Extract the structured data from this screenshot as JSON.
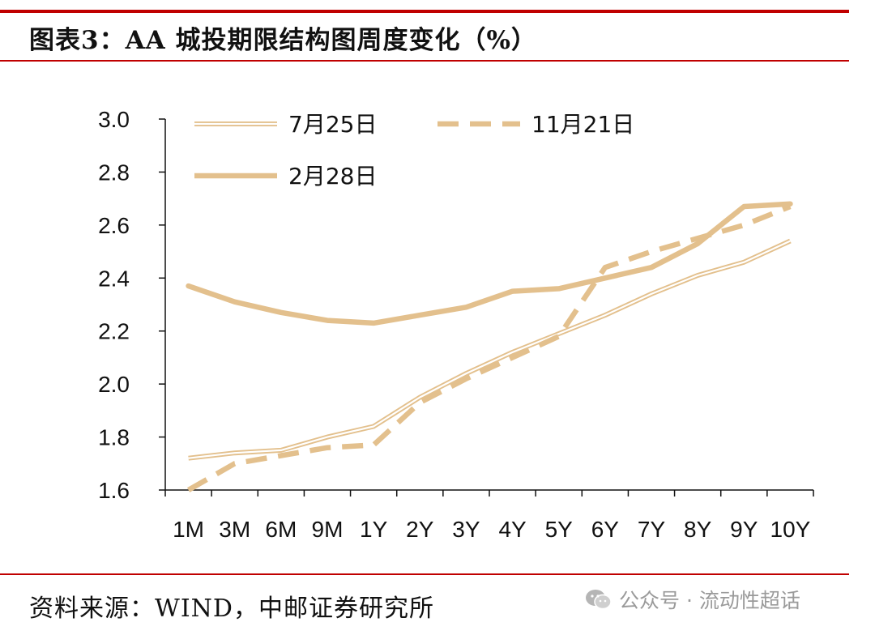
{
  "title": "图表3：AA 城投期限结构图周度变化（%）",
  "source": "资料来源：WIND，中邮证券研究所",
  "watermark": {
    "icon": "wechat-icon",
    "text": "公众号 · 流动性超话"
  },
  "colors": {
    "rule": "#c00000",
    "series": "#e3c08d",
    "axis": "#111111"
  },
  "chart_data": {
    "type": "line",
    "title": "图表3：AA 城投期限结构图周度变化（%）",
    "xlabel": "",
    "ylabel": "",
    "ylim": [
      1.6,
      3.0
    ],
    "yticks": [
      1.6,
      1.8,
      2.0,
      2.2,
      2.4,
      2.6,
      2.8,
      3.0
    ],
    "ytick_labels": [
      "1.6",
      "1.8",
      "2.0",
      "2.2",
      "2.4",
      "2.6",
      "2.8",
      "3.0"
    ],
    "categories": [
      "1M",
      "3M",
      "6M",
      "9M",
      "1Y",
      "2Y",
      "3Y",
      "4Y",
      "5Y",
      "6Y",
      "7Y",
      "8Y",
      "9Y",
      "10Y"
    ],
    "legend_position": "top-left",
    "grid": false,
    "series": [
      {
        "name": "7月25日",
        "style": "double",
        "values": [
          1.72,
          1.74,
          1.75,
          1.8,
          1.84,
          1.95,
          2.04,
          2.12,
          2.19,
          2.26,
          2.34,
          2.41,
          2.46,
          2.54
        ]
      },
      {
        "name": "11月21日",
        "style": "dashed",
        "values": [
          1.6,
          1.7,
          1.73,
          1.76,
          1.77,
          1.93,
          2.02,
          2.1,
          2.18,
          2.44,
          2.5,
          2.55,
          2.6,
          2.67
        ]
      },
      {
        "name": "2月28日",
        "style": "solid",
        "values": [
          2.37,
          2.31,
          2.27,
          2.24,
          2.23,
          2.26,
          2.29,
          2.35,
          2.36,
          2.4,
          2.44,
          2.53,
          2.67,
          2.68
        ]
      }
    ]
  }
}
